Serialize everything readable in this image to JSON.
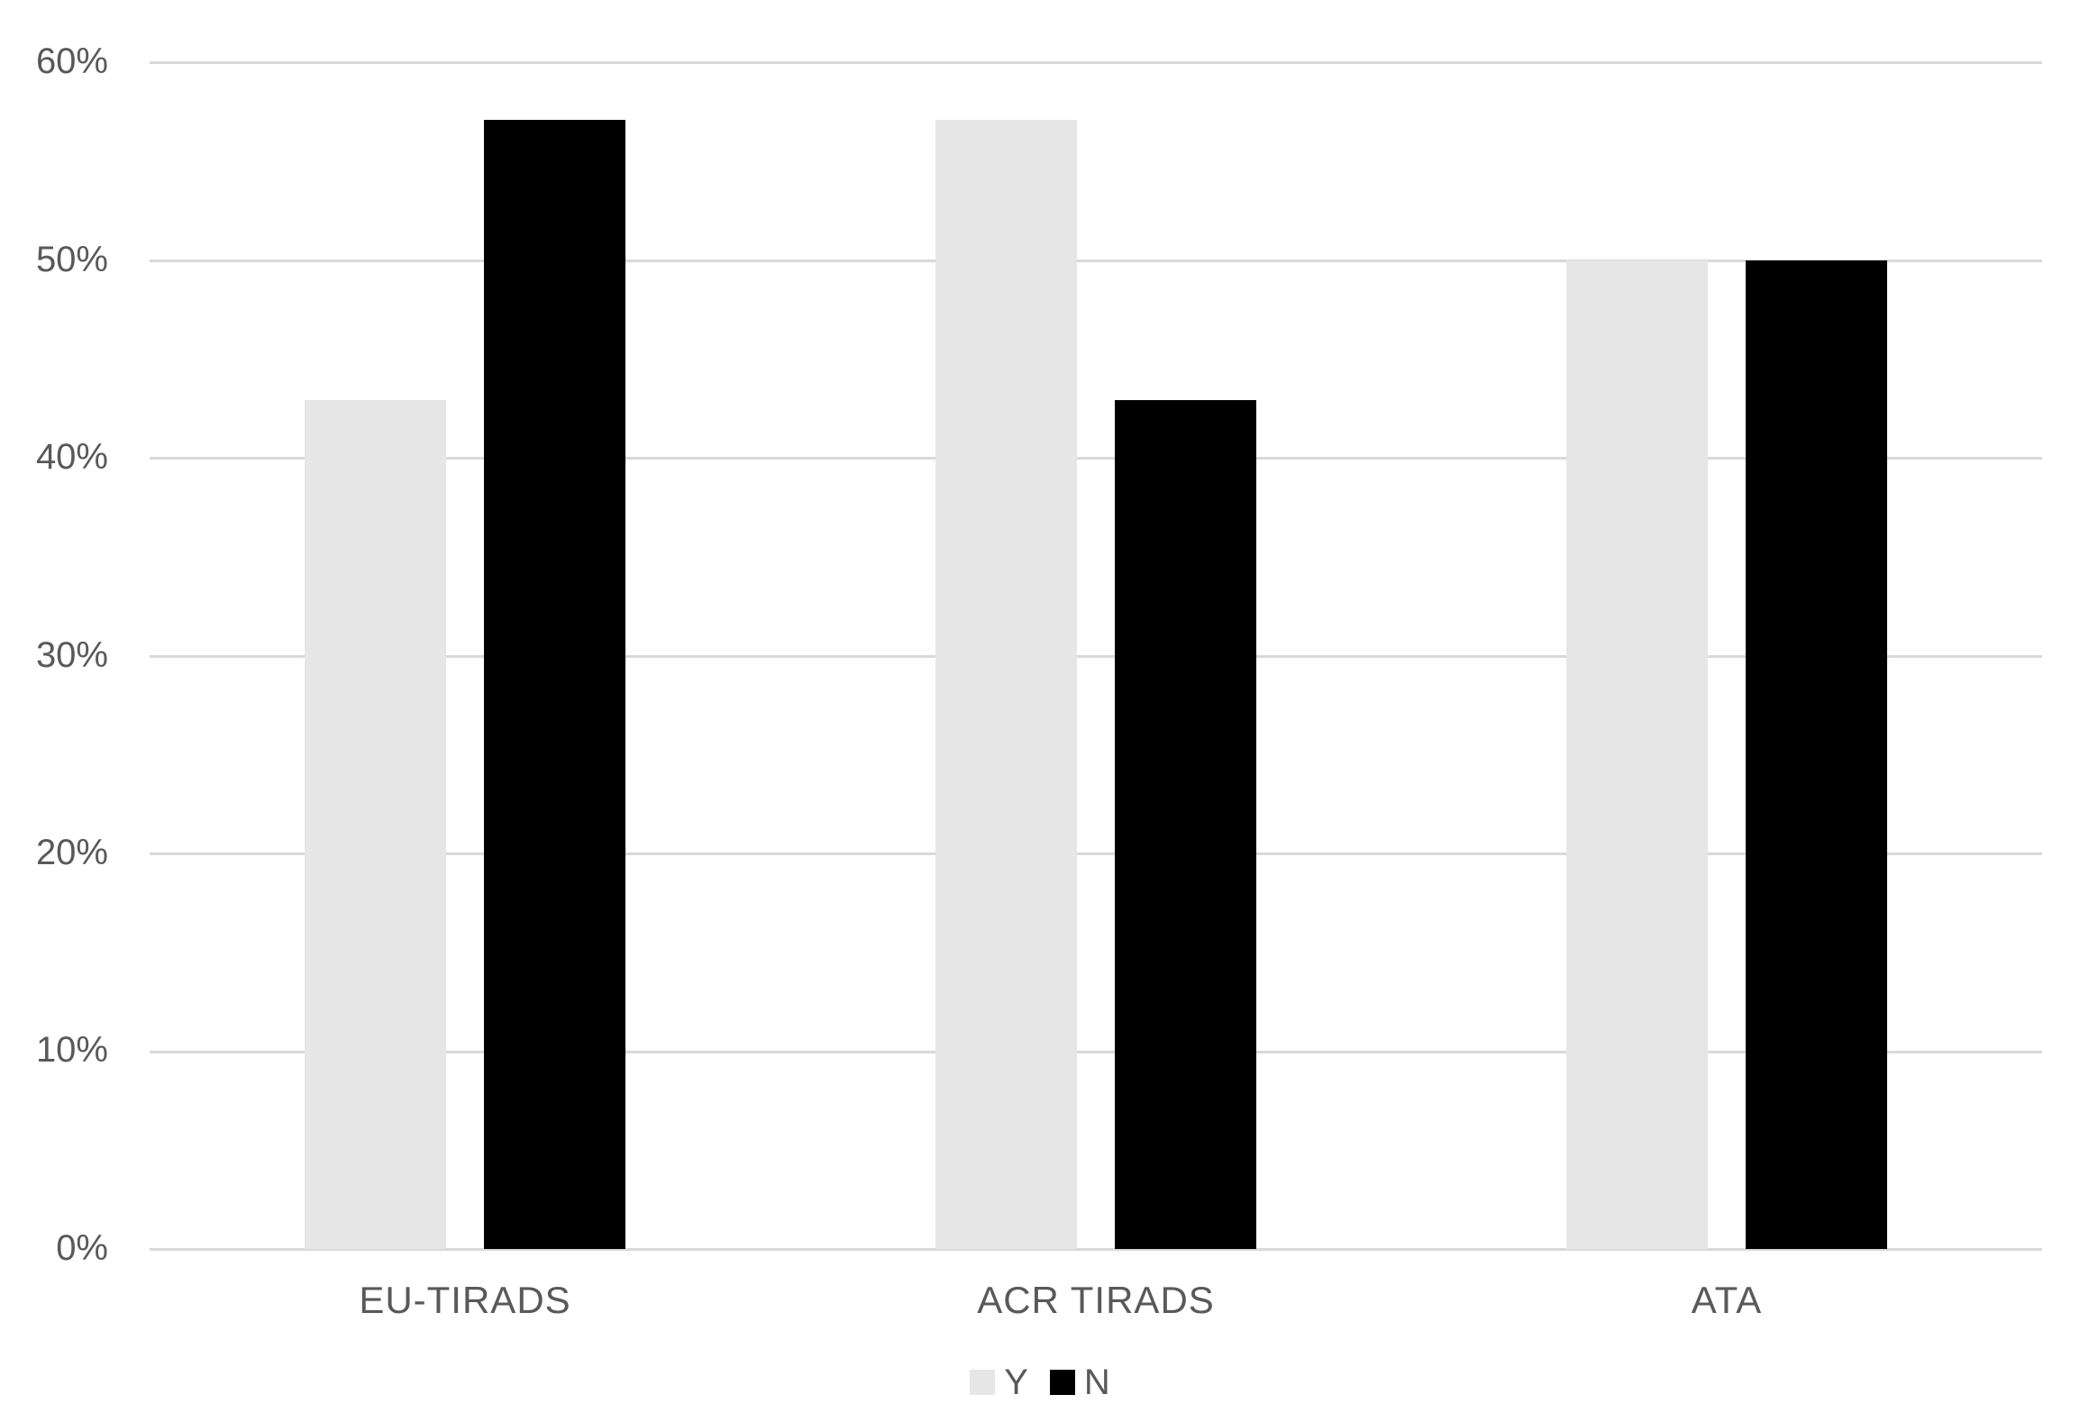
{
  "chart_data": {
    "type": "bar",
    "title": "",
    "xlabel": "",
    "ylabel": "",
    "categories": [
      "EU-TIRADS",
      "ACR TIRADS",
      "ATA"
    ],
    "series": [
      {
        "name": "Y",
        "color": "#e6e6e6",
        "values": [
          42.9,
          57.1,
          50
        ]
      },
      {
        "name": "N",
        "color": "#000000",
        "values": [
          57.1,
          42.9,
          50
        ]
      }
    ],
    "ylim": [
      0,
      60
    ],
    "ytick_step": 10,
    "ytick_labels_top_to_bottom": [
      "60%",
      "50%",
      "40%",
      "30%",
      "20%",
      "10%",
      "0%"
    ],
    "grid": true,
    "gridline_color": "#d9d9d9",
    "axis_text_color": "#595959",
    "background_color": "#ffffff",
    "legend_position": "bottom-center"
  }
}
